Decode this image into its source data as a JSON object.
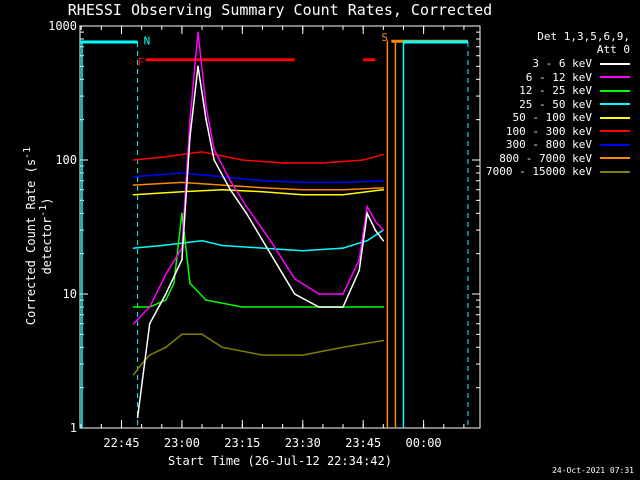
{
  "chart_data": {
    "type": "line",
    "title": "RHESSI Observing Summary Count Rates, Corrected",
    "xlabel": "Start Time (26-Jul-12 22:34:42)",
    "ylabel": "Corrected Count Rate (s-1 detector-1)",
    "yscale": "log",
    "ylim": [
      1,
      1000
    ],
    "xlim": [
      "22:34:42",
      "00:14"
    ],
    "y_tick_labels": [
      "1",
      "10",
      "100",
      "1000"
    ],
    "x_tick_labels": [
      "22:45",
      "23:00",
      "23:15",
      "23:30",
      "23:45",
      "00:00"
    ],
    "legend_title": [
      "Det 1,3,5,6,9,",
      "Att 0"
    ],
    "legend_placement": "right",
    "markers": [
      {
        "label": "N",
        "color": "#00ffff",
        "at": "22:49",
        "kind": "night-start"
      },
      {
        "label": "S",
        "color": "#ff8800",
        "at": "23:52",
        "kind": "saa-start"
      },
      {
        "label": "F",
        "color": "#ff0000",
        "kind": "flare"
      }
    ],
    "flags": [
      {
        "label": "F",
        "color": "#ff0000",
        "start": "22:51",
        "end": "23:28"
      },
      {
        "label": "F",
        "color": "#ff0000",
        "start": "23:45",
        "end": "23:48"
      },
      {
        "label": "S",
        "color": "#ff8800",
        "start": "23:52",
        "end": "00:11"
      },
      {
        "label": "N",
        "color": "#00ffff",
        "start": "22:34:42",
        "end": "22:49"
      },
      {
        "label": "N",
        "color": "#00ffff",
        "start": "23:55",
        "end": "00:11"
      }
    ],
    "series": [
      {
        "name": "3 - 6 keV",
        "color": "#ffffff",
        "x": [
          "22:49",
          "22:52",
          "22:56",
          "23:00",
          "23:02",
          "23:04",
          "23:06",
          "23:08",
          "23:12",
          "23:16",
          "23:22",
          "23:28",
          "23:34",
          "23:40",
          "23:44",
          "23:46",
          "23:48",
          "23:50"
        ],
        "y": [
          1.2,
          6,
          10,
          18,
          150,
          500,
          200,
          100,
          60,
          40,
          20,
          10,
          8,
          8,
          15,
          40,
          30,
          25
        ]
      },
      {
        "name": "6 - 12 keV",
        "color": "#ff00ff",
        "x": [
          "22:48",
          "22:52",
          "22:56",
          "23:00",
          "23:02",
          "23:04",
          "23:06",
          "23:08",
          "23:12",
          "23:16",
          "23:22",
          "23:28",
          "23:34",
          "23:40",
          "23:44",
          "23:46",
          "23:48",
          "23:50"
        ],
        "y": [
          6,
          8,
          14,
          22,
          200,
          900,
          250,
          120,
          70,
          45,
          25,
          13,
          10,
          10,
          18,
          45,
          35,
          30
        ]
      },
      {
        "name": "12 - 25 keV",
        "color": "#00ff00",
        "x": [
          "22:48",
          "22:52",
          "22:56",
          "22:58",
          "23:00",
          "23:02",
          "23:06",
          "23:15",
          "23:30",
          "23:45",
          "23:50"
        ],
        "y": [
          8,
          8,
          9,
          12,
          40,
          12,
          9,
          8,
          8,
          8,
          8
        ]
      },
      {
        "name": "25 - 50 keV",
        "color": "#00ffff",
        "x": [
          "22:48",
          "22:55",
          "23:00",
          "23:05",
          "23:10",
          "23:20",
          "23:30",
          "23:40",
          "23:46",
          "23:50"
        ],
        "y": [
          22,
          23,
          24,
          25,
          23,
          22,
          21,
          22,
          25,
          30
        ]
      },
      {
        "name": "50 - 100 keV",
        "color": "#ffff00",
        "x": [
          "22:48",
          "23:00",
          "23:10",
          "23:20",
          "23:30",
          "23:40",
          "23:50"
        ],
        "y": [
          55,
          58,
          60,
          58,
          55,
          55,
          60
        ]
      },
      {
        "name": "100 - 300 keV",
        "color": "#ff0000",
        "x": [
          "22:48",
          "22:55",
          "23:00",
          "23:05",
          "23:15",
          "23:25",
          "23:35",
          "23:45",
          "23:50"
        ],
        "y": [
          100,
          105,
          110,
          115,
          100,
          95,
          95,
          100,
          110
        ]
      },
      {
        "name": "300 - 800 keV",
        "color": "#0000ff",
        "x": [
          "22:48",
          "23:00",
          "23:10",
          "23:20",
          "23:30",
          "23:40",
          "23:50"
        ],
        "y": [
          75,
          80,
          75,
          70,
          68,
          68,
          70
        ]
      },
      {
        "name": "800 - 7000 keV",
        "color": "#ff8800",
        "x": [
          "22:48",
          "23:00",
          "23:10",
          "23:20",
          "23:30",
          "23:40",
          "23:50"
        ],
        "y": [
          65,
          68,
          65,
          62,
          60,
          60,
          62
        ]
      },
      {
        "name": "7000 - 15000 keV",
        "color": "#808000",
        "x": [
          "22:48",
          "22:50",
          "22:52",
          "22:56",
          "23:00",
          "23:05",
          "23:10",
          "23:20",
          "23:30",
          "23:40",
          "23:50"
        ],
        "y": [
          2.5,
          3,
          3.5,
          4,
          5,
          5,
          4,
          3.5,
          3.5,
          4,
          4.5
        ]
      }
    ]
  },
  "footer": {
    "timestamp": "24-Oct-2021 07:31"
  }
}
